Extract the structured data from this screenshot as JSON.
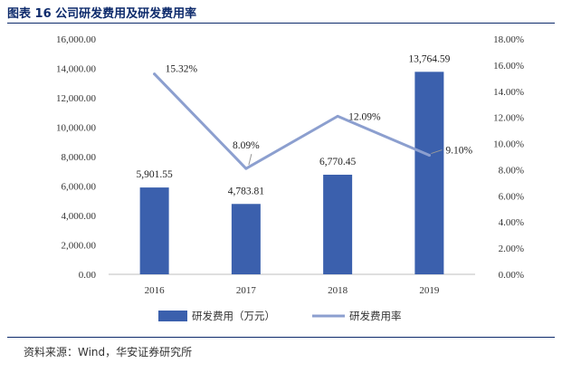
{
  "title": "图表 16 公司研发费用及研发费用率",
  "source": "资料来源：Wind，华安证券研究所",
  "colors": {
    "bar": "#3b60ad",
    "line": "#8c9fcf",
    "heading": "#0d2a6b"
  },
  "chart_data": {
    "type": "bar+line",
    "categories": [
      "2016",
      "2017",
      "2018",
      "2019"
    ],
    "series": [
      {
        "name": "研发费用（万元）",
        "type": "bar",
        "axis": "left",
        "values": [
          5901.55,
          4783.81,
          6770.45,
          13764.59
        ],
        "labels": [
          "5,901.55",
          "4,783.81",
          "6,770.45",
          "13,764.59"
        ]
      },
      {
        "name": "研发费用率",
        "type": "line",
        "axis": "right",
        "values": [
          15.32,
          8.09,
          12.09,
          9.1
        ],
        "labels": [
          "15.32%",
          "8.09%",
          "12.09%",
          "9.10%"
        ]
      }
    ],
    "left_axis": {
      "min": 0,
      "max": 16000,
      "step": 2000,
      "ticks": [
        "0.00",
        "2,000.00",
        "4,000.00",
        "6,000.00",
        "8,000.00",
        "10,000.00",
        "12,000.00",
        "14,000.00",
        "16,000.00"
      ]
    },
    "right_axis": {
      "min": 0,
      "max": 18,
      "step": 2,
      "ticks": [
        "0.00%",
        "2.00%",
        "4.00%",
        "6.00%",
        "8.00%",
        "10.00%",
        "12.00%",
        "14.00%",
        "16.00%",
        "18.00%"
      ]
    },
    "legend": {
      "position": "bottom"
    },
    "grid": false
  }
}
